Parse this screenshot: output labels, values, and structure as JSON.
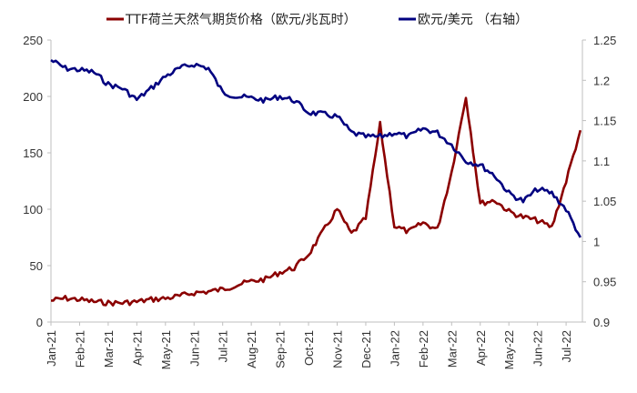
{
  "chart_data": {
    "type": "line",
    "title": "",
    "xlabel": "",
    "ylabel_left": "",
    "ylabel_right": "",
    "legend_position": "top",
    "grid": false,
    "y_left": {
      "range": [
        0,
        250
      ],
      "ticks": [
        "0",
        "50",
        "100",
        "150",
        "200",
        "250"
      ]
    },
    "y_right": {
      "range": [
        0.9,
        1.25
      ],
      "ticks": [
        "0.9",
        "0.95",
        "1",
        "1.05",
        "1.1",
        "1.15",
        "1.2",
        "1.25"
      ]
    },
    "x_ticks": [
      "Jan-21",
      "Feb-21",
      "Mar-21",
      "Apr-21",
      "May-21",
      "Jun-21",
      "Jul-21",
      "Aug-21",
      "Sep-21",
      "Oct-21",
      "Nov-21",
      "Dec-21",
      "Jan-22",
      "Feb-22",
      "Mar-22",
      "Apr-22",
      "May-22",
      "Jun-22",
      "Jul-22"
    ],
    "series": [
      {
        "name": "TTF荷兰天然气期货价格（欧元/兆瓦时）",
        "axis": "left",
        "color": "#8B0000",
        "x": [
          "Jan-21",
          "Jan-21b",
          "Feb-21",
          "Feb-21b",
          "Mar-21",
          "Mar-21b",
          "Apr-21",
          "Apr-21b",
          "May-21",
          "May-21b",
          "Jun-21",
          "Jun-21b",
          "Jul-21",
          "Jul-21b",
          "Aug-21",
          "Aug-21b",
          "Sep-21",
          "Sep-21b",
          "Oct-21",
          "Oct-21b",
          "Nov-21",
          "Nov-21b",
          "Dec-21",
          "Dec-21b",
          "Jan-22",
          "Jan-22b",
          "Feb-22",
          "Feb-22b",
          "Mar-22",
          "Mar-22b",
          "Apr-22",
          "Apr-22b",
          "May-22",
          "May-22b",
          "Jun-22",
          "Jun-22b",
          "Jul-22",
          "Jul-22b"
        ],
        "values": [
          19,
          21,
          20,
          18,
          17,
          17,
          18,
          20,
          21,
          23,
          26,
          27,
          29,
          33,
          36,
          38,
          44,
          48,
          60,
          80,
          100,
          78,
          92,
          175,
          85,
          80,
          88,
          82,
          133,
          200,
          105,
          108,
          98,
          93,
          90,
          84,
          125,
          170
        ]
      },
      {
        "name": "欧元/美元 （右轴）",
        "axis": "right",
        "color": "#000080",
        "x": [
          "Jan-21",
          "Jan-21b",
          "Feb-21",
          "Feb-21b",
          "Mar-21",
          "Mar-21b",
          "Apr-21",
          "Apr-21b",
          "May-21",
          "May-21b",
          "Jun-21",
          "Jun-21b",
          "Jul-21",
          "Jul-21b",
          "Aug-21",
          "Aug-21b",
          "Sep-21",
          "Sep-21b",
          "Oct-21",
          "Oct-21b",
          "Nov-21",
          "Nov-21b",
          "Dec-21",
          "Dec-21b",
          "Jan-22",
          "Jan-22b",
          "Feb-22",
          "Feb-22b",
          "Mar-22",
          "Mar-22b",
          "Apr-22",
          "Apr-22b",
          "May-22",
          "May-22b",
          "Jun-22",
          "Jun-22b",
          "Jul-22",
          "Jul-22b"
        ],
        "values": [
          1.225,
          1.215,
          1.213,
          1.21,
          1.195,
          1.19,
          1.176,
          1.19,
          1.205,
          1.215,
          1.22,
          1.215,
          1.185,
          1.18,
          1.178,
          1.175,
          1.18,
          1.175,
          1.16,
          1.158,
          1.155,
          1.135,
          1.13,
          1.13,
          1.135,
          1.13,
          1.14,
          1.135,
          1.12,
          1.1,
          1.095,
          1.082,
          1.06,
          1.05,
          1.065,
          1.06,
          1.04,
          1.005
        ]
      }
    ]
  },
  "legend": {
    "items": [
      {
        "label": "TTF荷兰天然气期货价格（欧元/兆瓦时）",
        "color": "#8B0000"
      },
      {
        "label": "欧元/美元 （右轴）",
        "color": "#000080"
      }
    ]
  }
}
